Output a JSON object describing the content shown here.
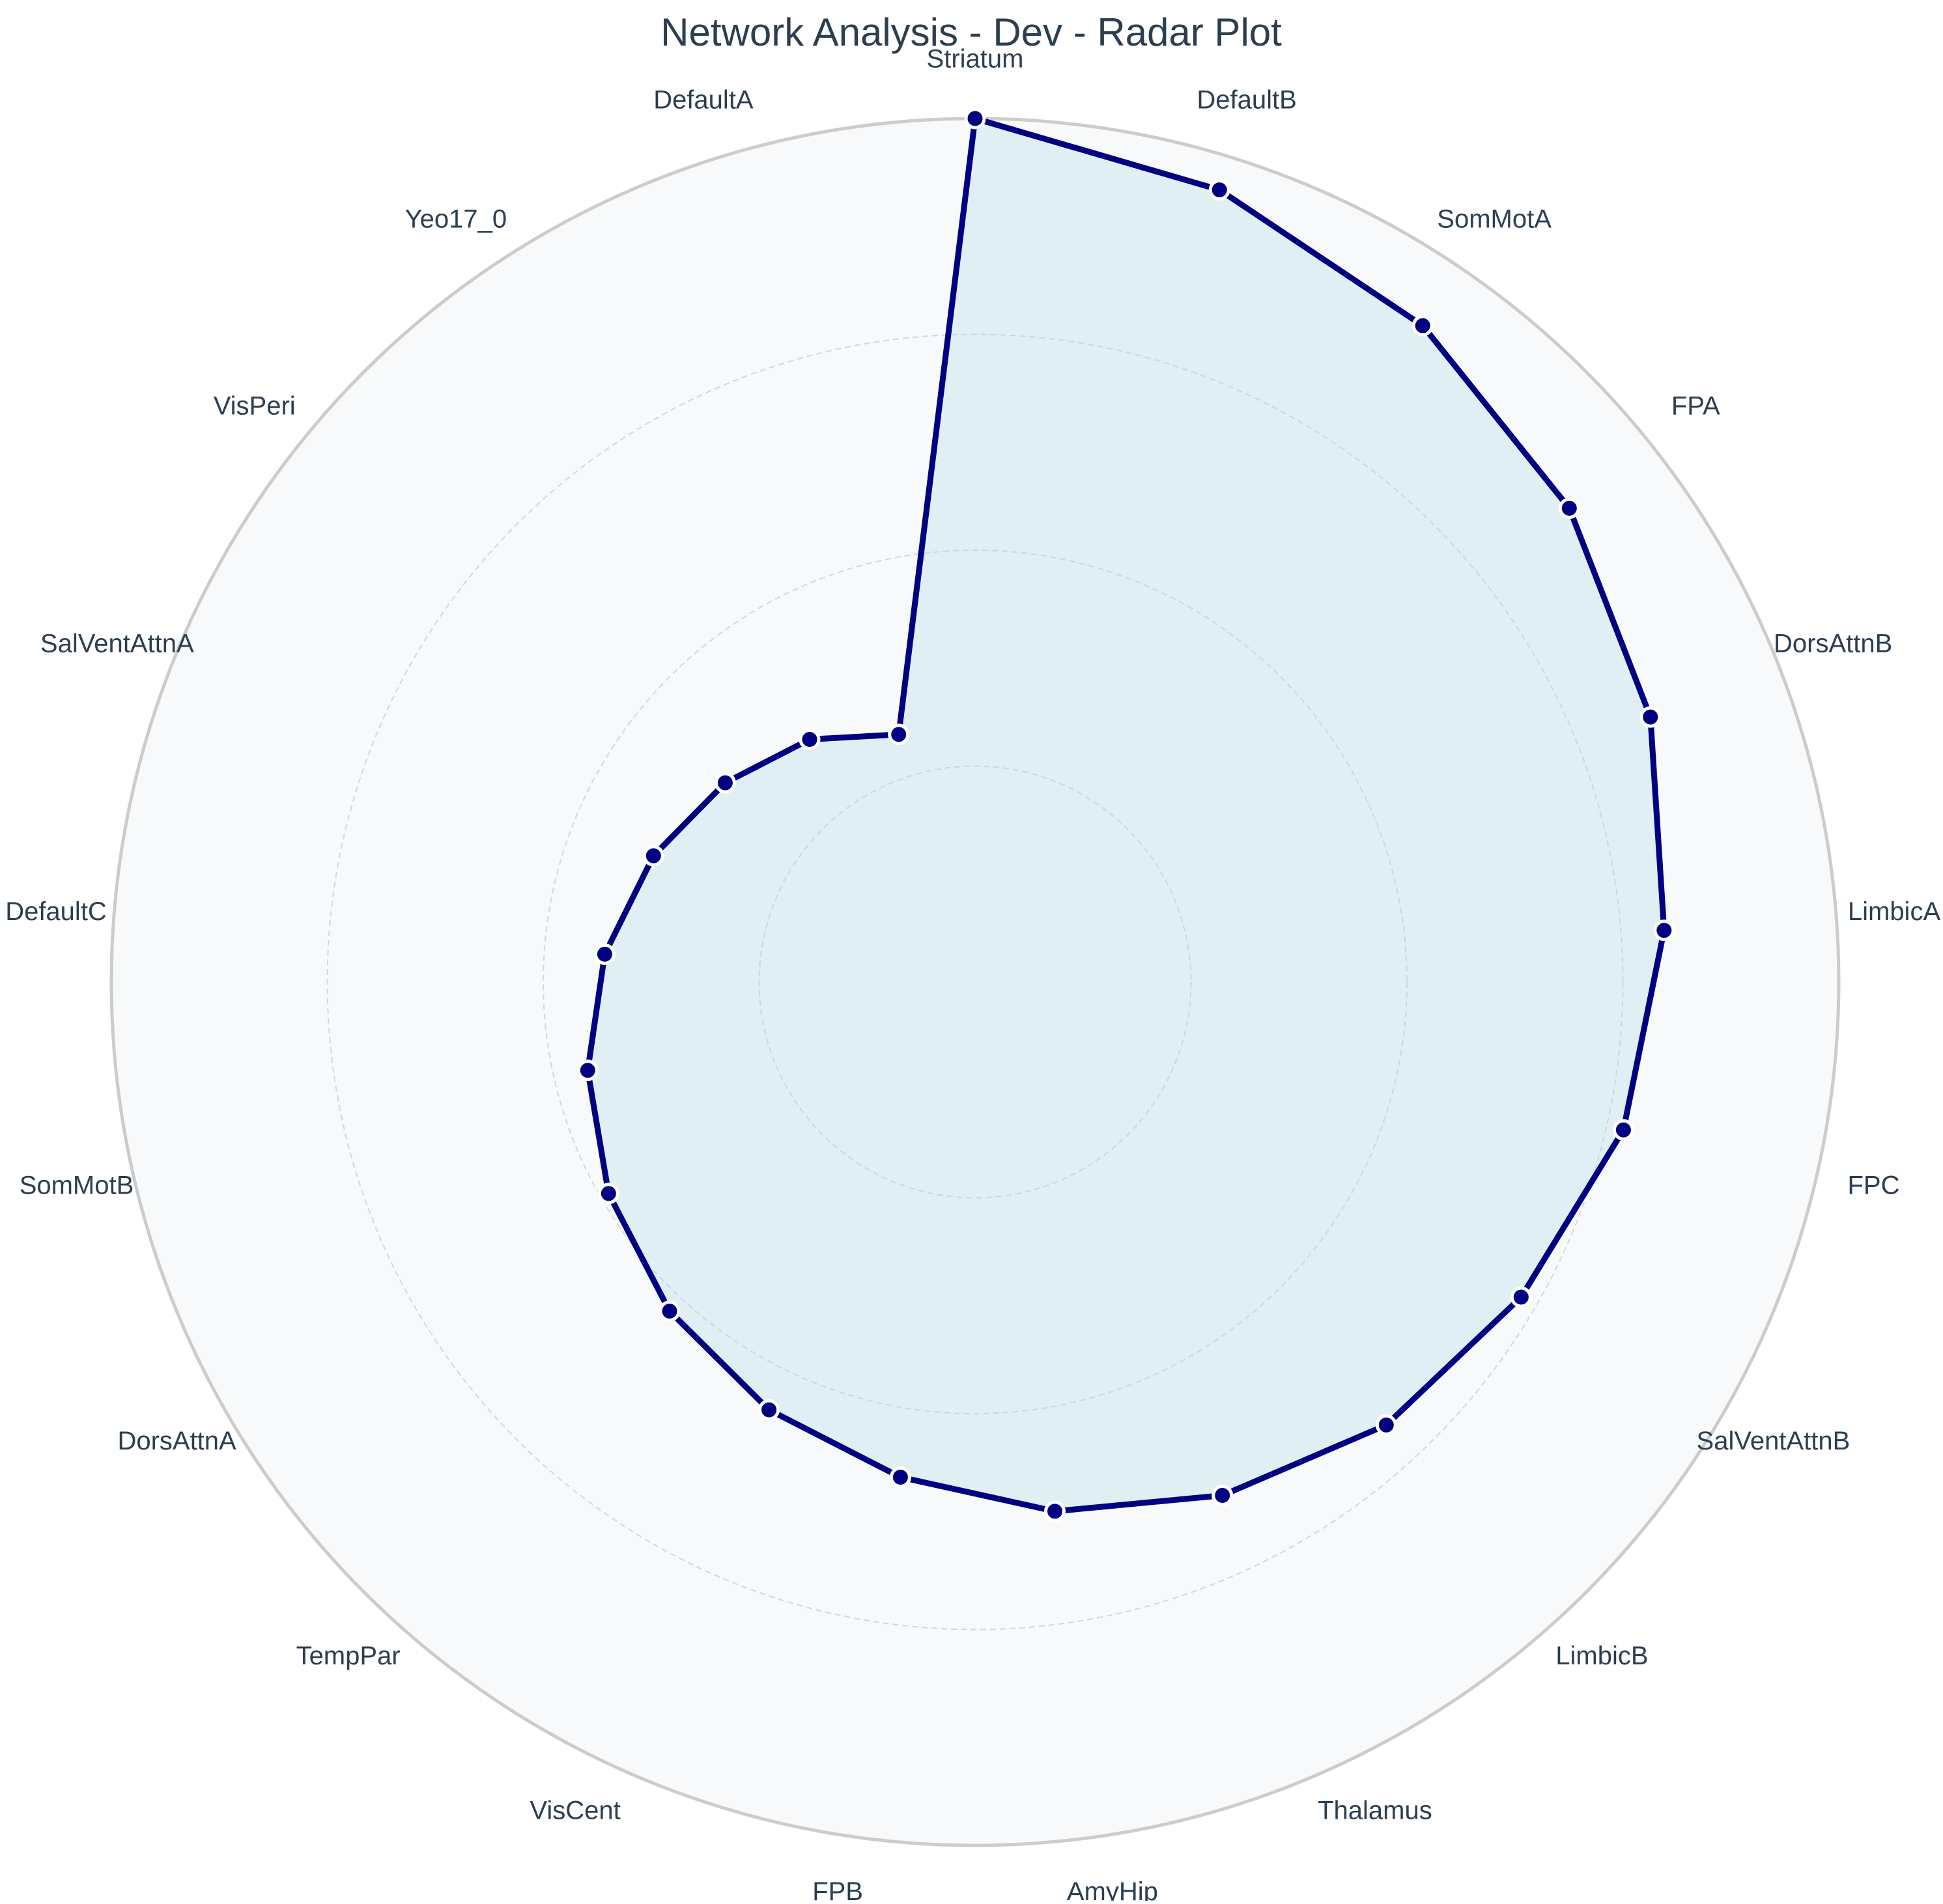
{
  "chart_data": {
    "type": "radar",
    "title": "Network Analysis - Dev - Radar Plot",
    "categories": [
      "Striatum",
      "DefaultB",
      "SomMotA",
      "FPA",
      "DorsAttnB",
      "LimbicA",
      "FPC",
      "SalVentAttnB",
      "LimbicB",
      "Thalamus",
      "AmyHip",
      "FPB",
      "VisCent",
      "TempPar",
      "DorsAttnA",
      "SomMotB",
      "DefaultC",
      "SalVentAttnA",
      "VisPeri",
      "Yeo17_0",
      "DefaultA"
    ],
    "series": [
      {
        "name": "Dev",
        "values": [
          1.0,
          0.96,
          0.92,
          0.88,
          0.84,
          0.8,
          0.77,
          0.73,
          0.7,
          0.66,
          0.62,
          0.58,
          0.55,
          0.52,
          0.49,
          0.46,
          0.43,
          0.4,
          0.37,
          0.34,
          0.3
        ],
        "line_color": "#000080",
        "fill_color": "#add8e6"
      }
    ],
    "rlim": [
      0,
      1
    ],
    "radial_gridlines": [
      0.25,
      0.5,
      0.75
    ],
    "grid": true,
    "start_direction": "top",
    "rotation": "clockwise",
    "background_color": "#f7f9fb",
    "outer_ring_color": "#cccccc",
    "label_color": "#2c3e50"
  }
}
